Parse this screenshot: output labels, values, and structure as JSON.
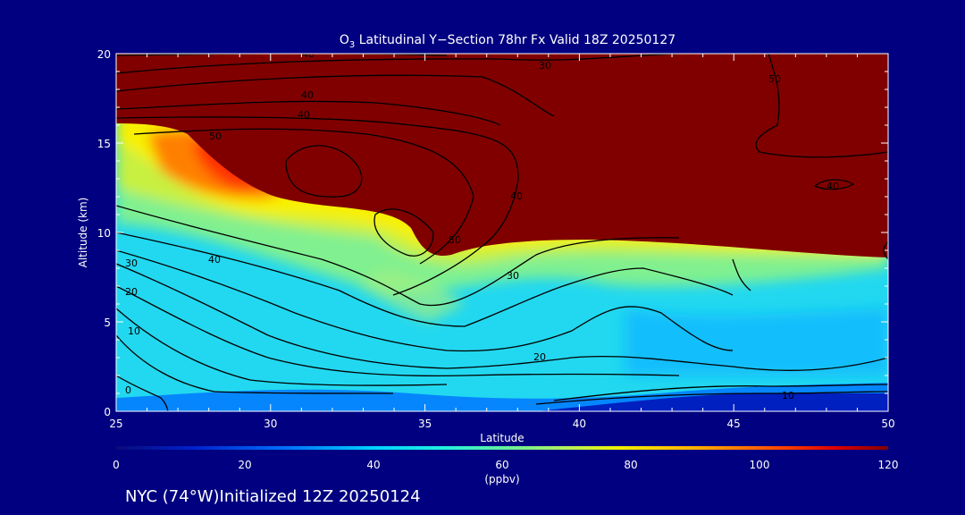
{
  "chart_data": {
    "type": "heatmap",
    "title_parts": [
      "O",
      "3",
      " Latitudinal Y−Section 78hr  Fx Valid 18Z 20250127"
    ],
    "xlabel": "Latitude",
    "ylabel": "Altitude (km)",
    "xlim": [
      25,
      50
    ],
    "ylim": [
      0,
      20
    ],
    "x_ticks": [
      "25",
      "30",
      "35",
      "40",
      "45",
      "50"
    ],
    "y_ticks": [
      "0",
      "5",
      "10",
      "15",
      "20"
    ],
    "colorbar": {
      "min": 0,
      "max": 120,
      "ticks": [
        "0",
        "20",
        "40",
        "60",
        "80",
        "100",
        "120"
      ],
      "unit": "(ppbv)"
    },
    "contour_labels": [
      "40",
      "30",
      "40",
      "50",
      "40",
      "40",
      "50",
      "50",
      "40",
      "30",
      "40",
      "30",
      "20",
      "10",
      "0",
      "20",
      "10"
    ],
    "field_description": "Ozone concentration: ~15-35 ppbv near surface, ~40-60 ppbv in mid troposphere, >120 ppbv above ~9 km north of 36N and above ~16 km at 25N; tongue of 80-110 ppbv near 26-33N at 12-15 km."
  },
  "footer": {
    "location": "NYC (74°W)Initialized 12Z 20250124"
  },
  "colors": {
    "background": "#000080",
    "stratosphere": "#800000",
    "contour": "#000000"
  }
}
